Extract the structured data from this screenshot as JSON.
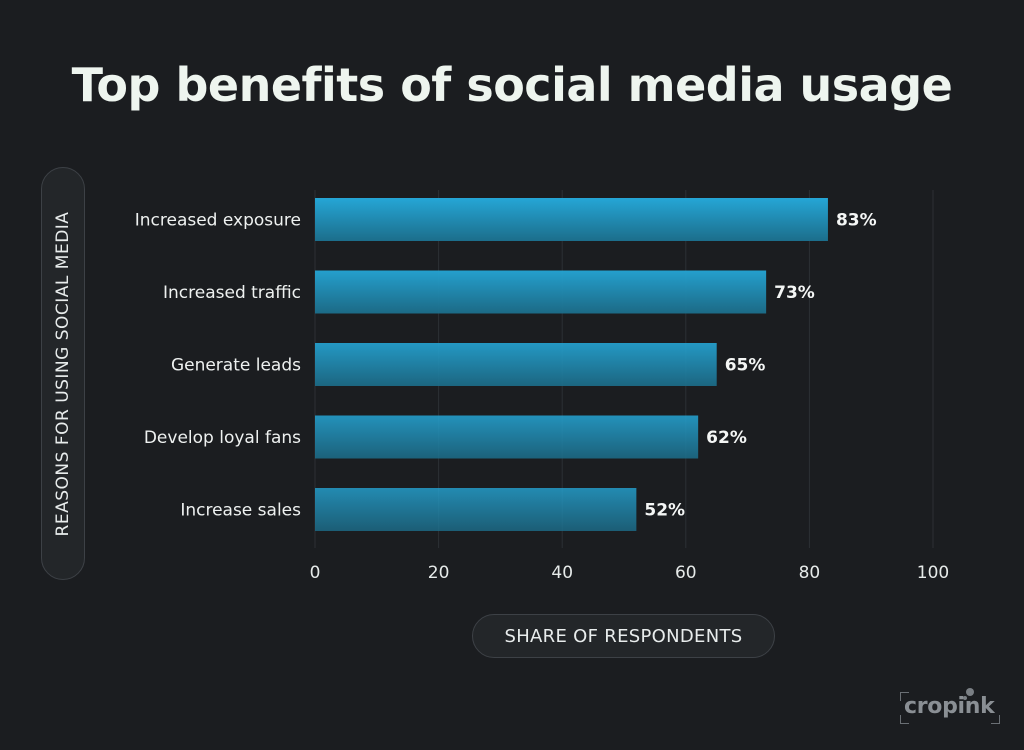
{
  "title": "Top benefits of social media usage",
  "logo_text": "cropink",
  "colors": {
    "background": "#1b1d20",
    "bar_top": "#25a6d6",
    "bar_bottom": "#1c6e8b",
    "grid": "#2c3034",
    "text": "#f2f4f3"
  },
  "chart_data": {
    "type": "bar",
    "orientation": "horizontal",
    "title": "Top benefits of social media usage",
    "ylabel": "REASONS FOR USING SOCIAL MEDIA",
    "xlabel": "SHARE OF RESPONDENTS",
    "categories": [
      "Increased exposure",
      "Increased traffic",
      "Generate leads",
      "Develop loyal fans",
      "Increase sales"
    ],
    "values": [
      83,
      73,
      65,
      62,
      52
    ],
    "value_labels": [
      "83%",
      "73%",
      "65%",
      "62%",
      "52%"
    ],
    "xlim": [
      0,
      100
    ],
    "xticks": [
      "0",
      "20",
      "40",
      "60",
      "80",
      "100"
    ],
    "grid": true
  }
}
